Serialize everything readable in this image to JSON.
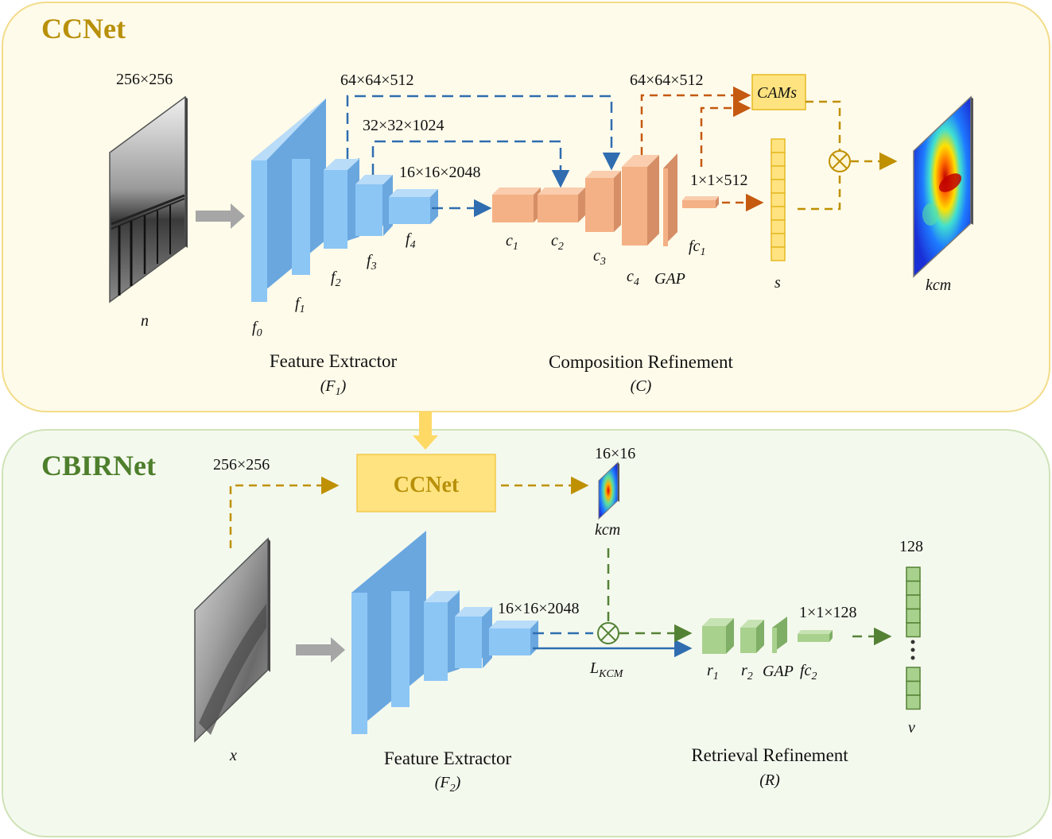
{
  "colors": {
    "ccnet_bg": "#fffbea",
    "ccnet_border": "#f3dc8a",
    "cbir_bg": "#f4f9ee",
    "cbir_border": "#cfe3b8",
    "ccnet_title": "#b8900a",
    "cbir_title": "#4e7f2c",
    "blue_face": "#8cc6f5",
    "blue_side": "#6aa7df",
    "blue_top": "#b9dcf9",
    "orange_face": "#f4b185",
    "orange_side": "#d58e66",
    "green_face": "#a9d18e",
    "green_side": "#7fae66",
    "yellow_fill": "#ffe380",
    "yellow_border": "#e5b923",
    "arrow_blue": "#2f6db0",
    "arrow_orange": "#c55a11",
    "arrow_gold": "#bf9000",
    "arrow_green": "#548235"
  },
  "ccnet": {
    "title": "CCNet",
    "input_size": "256×256",
    "input_label": "n",
    "blocks": [
      "f",
      "f",
      "f",
      "f",
      "f"
    ],
    "block_subs": [
      "0",
      "1",
      "2",
      "3",
      "4"
    ],
    "dim_f2": "64×64×512",
    "dim_f3": "32×32×1024",
    "dim_f4": "16×16×2048",
    "comp_blocks": [
      "c",
      "c",
      "c",
      "c"
    ],
    "comp_subs": [
      "1",
      "2",
      "3",
      "4"
    ],
    "dim_c4": "64×64×512",
    "gap_label": "GAP",
    "fc_label": "fc",
    "fc_sub": "1",
    "dim_fc1": "1×1×512",
    "cams_label": "CAMs",
    "s_label": "s",
    "output_label": "kcm",
    "feature_extractor": "Feature Extractor",
    "fe_symbol": "F",
    "fe_sub": "1",
    "composition_refinement": "Composition Refinement",
    "cr_symbol": "C"
  },
  "cbirnet": {
    "title": "CBIRNet",
    "input_size": "256×256",
    "ccnet_box": "CCNet",
    "kcm_size": "16×16",
    "kcm_label": "kcm",
    "input_label": "x",
    "dim_f4": "16×16×2048",
    "loss_label": "L",
    "loss_sub": "KCM",
    "r_blocks": [
      "r",
      "r"
    ],
    "r_subs": [
      "1",
      "2"
    ],
    "gap_label": "GAP",
    "fc_label": "fc",
    "fc_sub": "2",
    "dim_fc2": "1×1×128",
    "out_size": "128",
    "out_label": "v",
    "feature_extractor": "Feature Extractor",
    "fe_symbol": "F",
    "fe_sub": "2",
    "retrieval_refinement": "Retrieval Refinement",
    "rr_symbol": "R"
  }
}
